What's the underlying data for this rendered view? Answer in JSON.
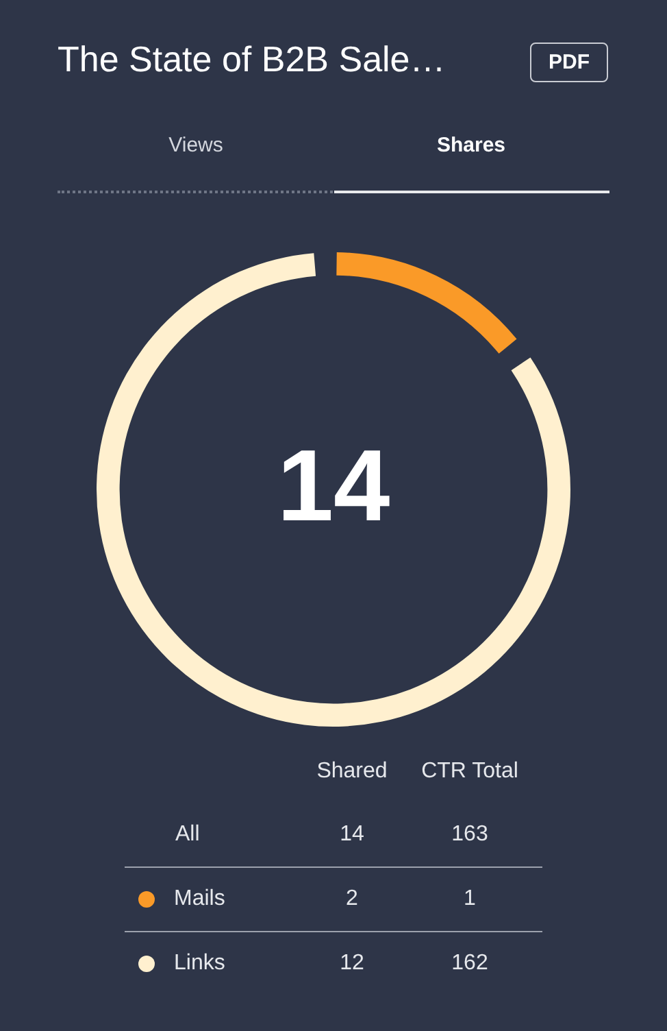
{
  "chart_data": {
    "type": "donut",
    "title": "The State of B2B Sale…",
    "categories": [
      "Mails",
      "Links"
    ],
    "values": [
      2,
      12
    ],
    "colors": [
      "#fa9a28",
      "#fff0cf"
    ],
    "legend": "bottom",
    "data_labels": true,
    "annotations": [
      "PDF",
      "Views",
      "Shares",
      "14",
      "Shared",
      "CTR Total",
      "All",
      "14",
      "163",
      "1",
      "162"
    ]
  }
}
